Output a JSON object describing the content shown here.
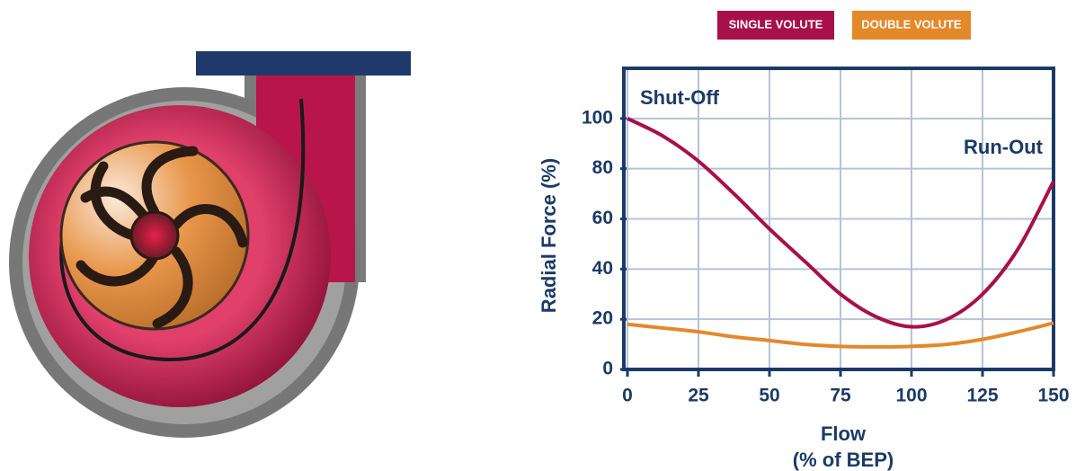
{
  "chart_data": {
    "type": "line",
    "x": [
      0,
      12.5,
      25,
      37.5,
      50,
      62.5,
      75,
      87.5,
      100,
      112.5,
      125,
      137.5,
      150
    ],
    "series": [
      {
        "name": "SINGLE VOLUTE",
        "color": "#a8104a",
        "values": [
          100,
          93,
          83,
          70,
          56,
          43,
          30,
          21,
          17,
          20,
          30,
          48,
          75
        ]
      },
      {
        "name": "DOUBLE VOLUTE",
        "color": "#e3892b",
        "values": [
          18,
          16.5,
          15,
          13,
          11.5,
          10,
          9.2,
          9,
          9.2,
          10,
          12,
          15,
          18.5
        ]
      }
    ],
    "xlabel": "Flow",
    "xlabel_sub": "(% of BEP)",
    "ylabel": "Radial Force (%)",
    "annotations": [
      "Shut-Off",
      "Run-Out"
    ],
    "xlim": [
      0,
      150
    ],
    "ylim": [
      0,
      120
    ],
    "xticks": [
      0,
      25,
      50,
      75,
      100,
      125,
      150
    ],
    "yticks": [
      0,
      20,
      40,
      60,
      80,
      100
    ],
    "grid": true,
    "legend": "top"
  }
}
